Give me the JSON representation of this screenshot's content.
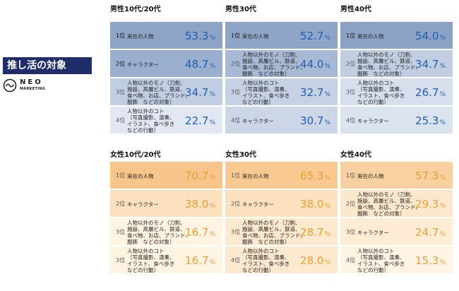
{
  "title": "推し活の対象",
  "logo": {
    "name": "NEO",
    "sub": "MARKETING"
  },
  "chart_data": [
    {
      "type": "table",
      "title": "男性10代/20代",
      "ranks": [
        {
          "rank": "1位",
          "label": "実在の人物",
          "value": 53.3
        },
        {
          "rank": "2位",
          "label": "キャラクター",
          "value": 48.7
        },
        {
          "rank": "3位",
          "label": "人物以外のモノ（刀剣、\n施設、高層ビル、鉄道、\n食べ物、お店、ブランド、\n服飾　などの対象）",
          "value": 34.7
        },
        {
          "rank": "4位",
          "label": "人物以外のコト\n（写真撮影、演奏、\nイラスト、食べ歩き\nなどの行動）",
          "value": 22.7
        }
      ]
    },
    {
      "type": "table",
      "title": "男性30代",
      "ranks": [
        {
          "rank": "1位",
          "label": "実在の人物",
          "value": 52.7
        },
        {
          "rank": "2位",
          "label": "人物以外のモノ（刀剣、\n施設、高層ビル、鉄道、\n食べ物、お店、ブランド、\n服飾　などの対象）",
          "value": 44.0
        },
        {
          "rank": "3位",
          "label": "人物以外のコト\n（写真撮影、演奏、\nイラスト、食べ歩き\nなどの行動）",
          "value": 32.7
        },
        {
          "rank": "4位",
          "label": "キャラクター",
          "value": 30.7
        }
      ]
    },
    {
      "type": "table",
      "title": "男性40代",
      "ranks": [
        {
          "rank": "1位",
          "label": "実在の人物",
          "value": 54.0
        },
        {
          "rank": "2位",
          "label": "人物以外のモノ（刀剣、\n施設、高層ビル、鉄道、\n食べ物、お店、ブランド、\n服飾　などの対象）",
          "value": 34.7
        },
        {
          "rank": "3位",
          "label": "人物以外のコト\n（写真撮影、演奏、\nイラスト、食べ歩き\nなどの行動）",
          "value": 26.7
        },
        {
          "rank": "4位",
          "label": "キャラクター",
          "value": 25.3
        }
      ]
    },
    {
      "type": "table",
      "title": "女性10代/20代",
      "ranks": [
        {
          "rank": "1位",
          "label": "実在の人物",
          "value": 70.7
        },
        {
          "rank": "2位",
          "label": "キャラクター",
          "value": 38.0
        },
        {
          "rank": "3位",
          "label": "人物以外のモノ（刀剣、\n施設、高層ビル、鉄道、\n食べ物、お店、ブランド、\n服飾　などの対象）",
          "value": 16.7
        },
        {
          "rank": "3位",
          "label": "人物以外のコト\n（写真撮影、演奏、\nイラスト、食べ歩き\nなどの行動）",
          "value": 16.7
        }
      ]
    },
    {
      "type": "table",
      "title": "女性30代",
      "ranks": [
        {
          "rank": "1位",
          "label": "実在の人物",
          "value": 65.3
        },
        {
          "rank": "2位",
          "label": "キャラクター",
          "value": 38.0
        },
        {
          "rank": "3位",
          "label": "人物以外のモノ（刀剣、\n施設、高層ビル、鉄道、\n食べ物、お店、ブランド、\n服飾　などの対象）",
          "value": 28.7
        },
        {
          "rank": "4位",
          "label": "人物以外のコト\n（写真撮影、演奏、\nイラスト、食べ歩き\nなどの行動）",
          "value": 28.0
        }
      ]
    },
    {
      "type": "table",
      "title": "女性40代",
      "ranks": [
        {
          "rank": "1位",
          "label": "実在の人物",
          "value": 57.3
        },
        {
          "rank": "2位",
          "label": "人物以外のモノ（刀剣、\n施設、高層ビル、鉄道、\n食べ物、お店、ブランド、\n服飾　などの対象）",
          "value": 29.3
        },
        {
          "rank": "3位",
          "label": "キャラクター",
          "value": 24.7
        },
        {
          "rank": "4位",
          "label": "人物以外のコト\n（写真撮影、演奏、\nイラスト、食べ歩き\nなどの行動）",
          "value": 15.3
        }
      ]
    }
  ],
  "unit": "%",
  "colors": {
    "male_text": "#1f5fb4",
    "female_text": "#e8a030",
    "title_bg": "#1f2d6b",
    "separator": "#ffffff"
  }
}
